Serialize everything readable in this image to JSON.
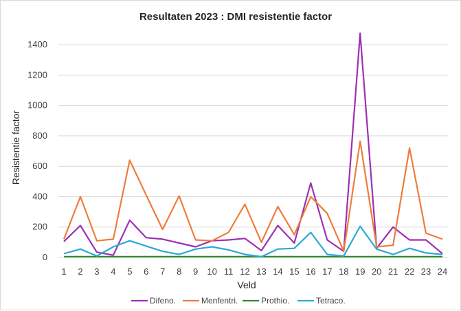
{
  "chart_data": {
    "type": "line",
    "title": "Resultaten 2023 : DMI resistentie factor",
    "xlabel": "Veld",
    "ylabel": "Resistentie factor",
    "ylim": [
      0,
      1500
    ],
    "yticks": [
      0,
      200,
      400,
      600,
      800,
      1000,
      1200,
      1400
    ],
    "grid": "horizontal",
    "legend_position": "bottom",
    "categories": [
      "1",
      "2",
      "3",
      "4",
      "5",
      "6",
      "7",
      "8",
      "9",
      "10",
      "11",
      "12",
      "13",
      "14",
      "15",
      "16",
      "17",
      "18",
      "19",
      "20",
      "21",
      "22",
      "23",
      "24"
    ],
    "series": [
      {
        "name": "Difeno.",
        "color": "#9e2fb4",
        "values": [
          105,
          210,
          35,
          15,
          245,
          130,
          120,
          95,
          70,
          110,
          115,
          125,
          45,
          210,
          95,
          490,
          115,
          40,
          1475,
          60,
          200,
          115,
          115,
          25
        ]
      },
      {
        "name": "Menfentri.",
        "color": "#ee7c3a",
        "values": [
          120,
          400,
          110,
          120,
          640,
          410,
          185,
          405,
          115,
          110,
          165,
          350,
          100,
          335,
          150,
          400,
          290,
          40,
          765,
          70,
          80,
          720,
          160,
          120
        ]
      },
      {
        "name": "Prothio.",
        "color": "#2e8b2e",
        "values": [
          5,
          5,
          5,
          5,
          5,
          5,
          5,
          5,
          5,
          5,
          5,
          5,
          5,
          5,
          5,
          5,
          5,
          5,
          5,
          5,
          5,
          5,
          5,
          5
        ]
      },
      {
        "name": "Tetraco.",
        "color": "#2aa8d8",
        "values": [
          25,
          55,
          10,
          70,
          110,
          75,
          40,
          20,
          55,
          70,
          50,
          20,
          5,
          55,
          60,
          165,
          20,
          10,
          205,
          55,
          20,
          60,
          30,
          20
        ]
      }
    ]
  }
}
